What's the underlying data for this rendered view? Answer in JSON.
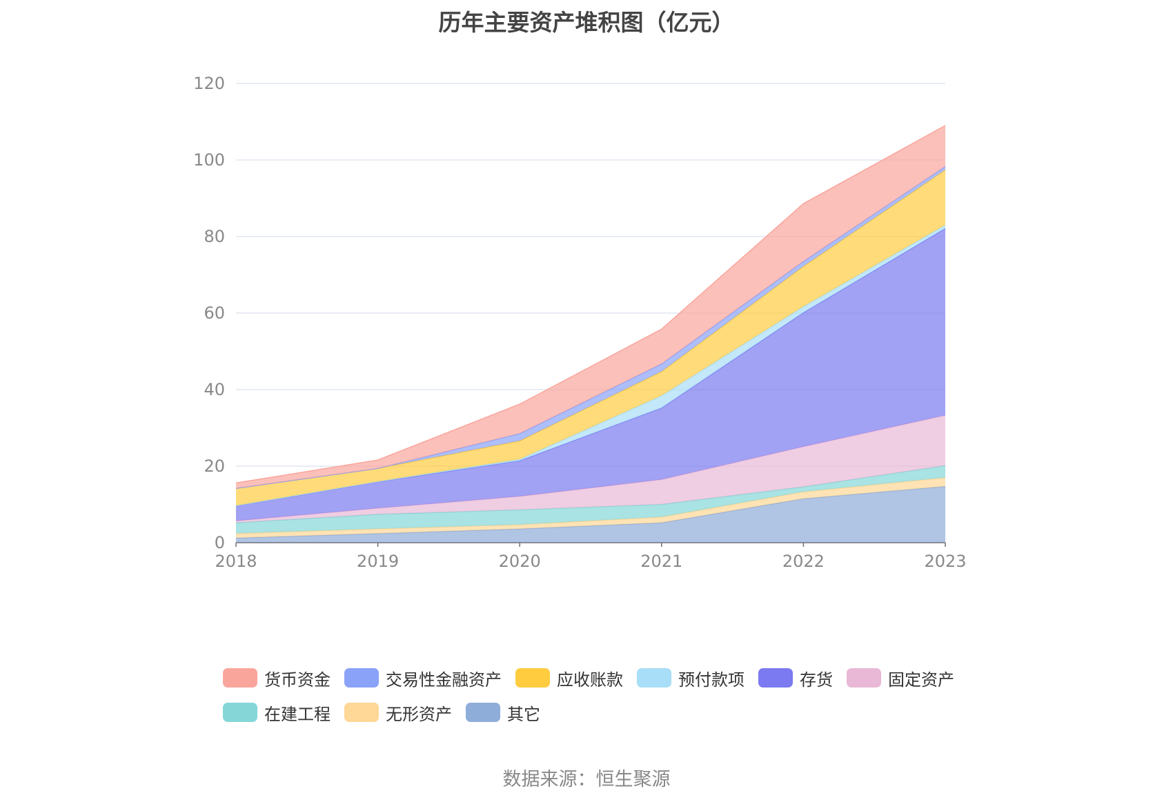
{
  "source_text": "数据来源：恒生聚源",
  "chart_data": {
    "type": "area",
    "stacked": true,
    "title": "历年主要资产堆积图（亿元）",
    "xlabel": "",
    "ylabel": "",
    "categories": [
      "2018",
      "2019",
      "2020",
      "2021",
      "2022",
      "2023"
    ],
    "ylim": [
      0,
      120
    ],
    "yticks": [
      0,
      20,
      40,
      60,
      80,
      100,
      120
    ],
    "grid": true,
    "legend_position": "bottom",
    "series": [
      {
        "name": "其它",
        "color": "#8FADD9",
        "values": [
          1.2,
          2.4,
          3.6,
          5.2,
          11.5,
          14.7
        ]
      },
      {
        "name": "无形资产",
        "color": "#FFD796",
        "values": [
          1.2,
          1.2,
          1.1,
          1.5,
          1.8,
          2.3
        ]
      },
      {
        "name": "在建工程",
        "color": "#85D7D7",
        "values": [
          2.8,
          3.8,
          3.9,
          3.3,
          1.3,
          3.1
        ]
      },
      {
        "name": "固定资产",
        "color": "#E8B8D6",
        "values": [
          0.5,
          1.6,
          3.5,
          6.5,
          10.5,
          13.2
        ]
      },
      {
        "name": "存货",
        "color": "#7B7AF0",
        "values": [
          3.9,
          6.9,
          9.3,
          18.7,
          35.0,
          48.8
        ]
      },
      {
        "name": "预付款项",
        "color": "#A8DEF7",
        "values": [
          0.1,
          0.1,
          0.4,
          3.2,
          1.6,
          0.9
        ]
      },
      {
        "name": "应收账款",
        "color": "#FFCC40",
        "values": [
          4.5,
          3.4,
          4.8,
          6.3,
          10.5,
          14.4
        ]
      },
      {
        "name": "交易性金融资产",
        "color": "#8AA2F8",
        "values": [
          0.0,
          0.0,
          1.9,
          2.0,
          1.3,
          0.9
        ]
      },
      {
        "name": "货币资金",
        "color": "#FAA59C",
        "values": [
          1.4,
          2.2,
          7.7,
          9.1,
          15.1,
          10.7
        ]
      }
    ],
    "legend_order": [
      "货币资金",
      "交易性金融资产",
      "应收账款",
      "预付款项",
      "存货",
      "固定资产",
      "在建工程",
      "无形资产",
      "其它"
    ]
  }
}
